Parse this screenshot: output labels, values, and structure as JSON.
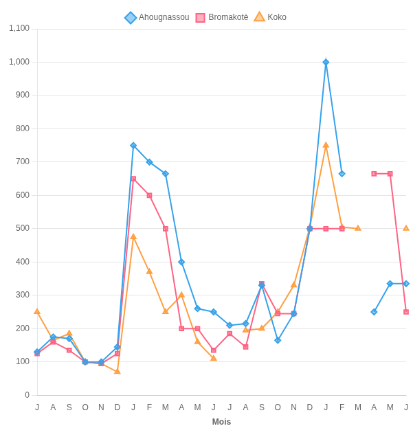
{
  "chart_data": {
    "type": "line",
    "x_label": "Mois",
    "categories": [
      "J",
      "A",
      "S",
      "O",
      "N",
      "D",
      "J",
      "F",
      "M",
      "A",
      "M",
      "J",
      "J",
      "A",
      "S",
      "O",
      "N",
      "D",
      "J",
      "F",
      "M",
      "A",
      "M",
      "J"
    ],
    "series": [
      {
        "name": "Ahougnassou",
        "marker": "diamond",
        "values": [
          130,
          175,
          170,
          100,
          100,
          145,
          750,
          700,
          665,
          400,
          260,
          250,
          210,
          215,
          330,
          165,
          245,
          500,
          1000,
          665,
          null,
          250,
          335,
          335
        ]
      },
      {
        "name": "Bromakotè",
        "marker": "square",
        "values": [
          125,
          160,
          135,
          100,
          95,
          125,
          650,
          600,
          500,
          200,
          200,
          135,
          185,
          145,
          335,
          245,
          245,
          500,
          500,
          500,
          null,
          665,
          665,
          250
        ]
      },
      {
        "name": "Koko",
        "marker": "triangle",
        "values": [
          250,
          165,
          185,
          100,
          95,
          70,
          475,
          370,
          250,
          300,
          160,
          110,
          null,
          195,
          200,
          250,
          330,
          505,
          750,
          505,
          500,
          null,
          null,
          500
        ]
      }
    ],
    "ylim": [
      0,
      1100
    ],
    "yticks": [
      0,
      100,
      200,
      300,
      400,
      500,
      600,
      700,
      800,
      900,
      1000,
      1100
    ],
    "grid": "y",
    "legend": "top"
  }
}
